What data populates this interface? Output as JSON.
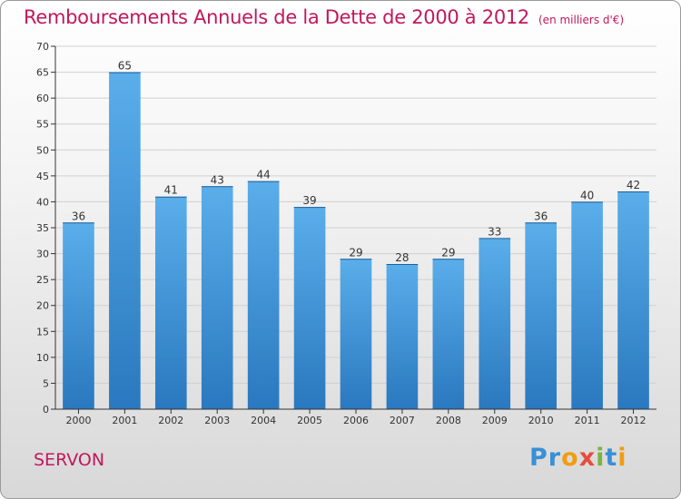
{
  "header": {
    "title": "Remboursements Annuels de la Dette de 2000 à 2012",
    "subtitle": "(en milliers d'€)"
  },
  "footer": {
    "commune": "SERVON",
    "logo_text": "Proxiti",
    "logo_letters": [
      "P",
      "r",
      "o",
      "x",
      "i",
      "t",
      "i"
    ],
    "logo_colors": [
      "#3a8fd6",
      "#3a8fd6",
      "#f39c12",
      "#e74c3c",
      "#7cb342",
      "#3a8fd6",
      "#f39c12"
    ]
  },
  "chart_data": {
    "type": "bar",
    "categories": [
      "2000",
      "2001",
      "2002",
      "2003",
      "2004",
      "2005",
      "2006",
      "2007",
      "2008",
      "2009",
      "2010",
      "2011",
      "2012"
    ],
    "values": [
      36,
      65,
      41,
      43,
      44,
      39,
      29,
      28,
      29,
      33,
      36,
      40,
      42
    ],
    "title": "Remboursements Annuels de la Dette de 2000 à 2012",
    "subtitle": "(en milliers d'€)",
    "ylim": [
      0,
      70
    ],
    "yticks": [
      0,
      5,
      10,
      15,
      20,
      25,
      30,
      35,
      40,
      45,
      50,
      55,
      60,
      65,
      70
    ],
    "grid": true,
    "data_labels": true,
    "colors": {
      "bar_top": "#5aaeea",
      "bar_bottom": "#2a78bf",
      "grid": "#d0d0d0",
      "axis": "#333333"
    }
  }
}
